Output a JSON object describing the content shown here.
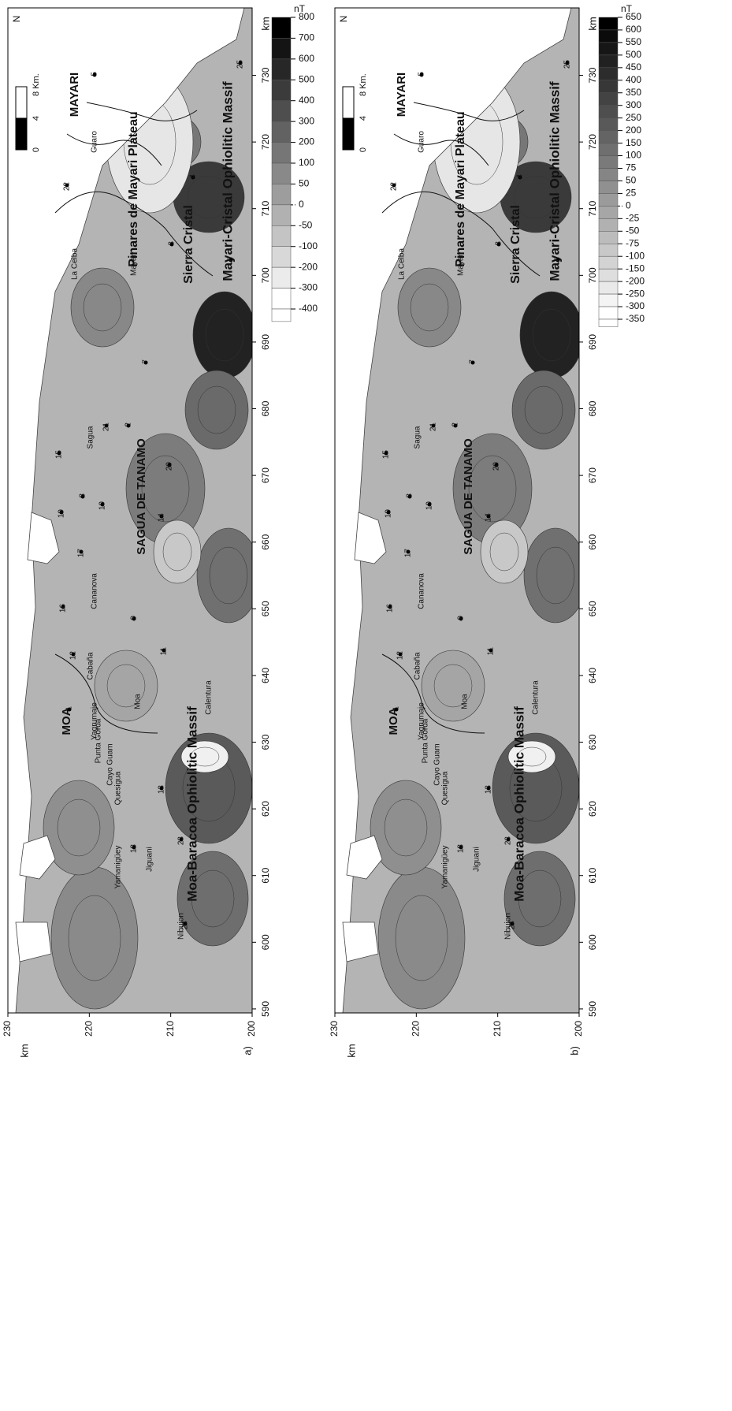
{
  "map": {
    "north": "N",
    "scale_bar": [
      "0",
      "4",
      "8 Km."
    ],
    "places": [
      "MOA",
      "Moa-Baracoa Ophiolitic Massif",
      "SAGUA DE TANAMO",
      "Sierra Cristal",
      "MAYARI",
      "Pinares de Mayari Plateau",
      "Mayari-Cristal Ophiolitic Massif"
    ],
    "rivers": [
      "Nibujon",
      "Jiguani",
      "Yamanigüey",
      "Quesigua",
      "Cayo Guam",
      "Punta Gorda",
      "Yagrumaje",
      "Moa",
      "Cabaña",
      "Calentura",
      "Cananova",
      "Sagua",
      "La Ceiba",
      "Mayari",
      "Guaro"
    ],
    "sites": [
      "1",
      "2",
      "3",
      "4",
      "5",
      "6",
      "7",
      "8",
      "9",
      "10",
      "11",
      "12",
      "13",
      "14",
      "15",
      "16",
      "17",
      "18",
      "19",
      "20",
      "21",
      "22",
      "23",
      "24",
      "25"
    ]
  },
  "panels": [
    {
      "label": "a)",
      "x_axis": {
        "title": "km",
        "ticks": [
          590,
          600,
          610,
          620,
          630,
          640,
          650,
          660,
          670,
          680,
          690,
          700,
          710,
          720,
          730
        ]
      },
      "y_axis": {
        "title": "km",
        "ticks": [
          200,
          210,
          220,
          230
        ]
      },
      "colorbar": {
        "unit": "nT",
        "ticks": [
          800,
          700,
          600,
          500,
          400,
          300,
          200,
          100,
          50,
          0,
          -50,
          -100,
          -200,
          -300,
          -400
        ]
      }
    },
    {
      "label": "b)",
      "x_axis": {
        "title": "km",
        "ticks": [
          590,
          600,
          610,
          620,
          630,
          640,
          650,
          660,
          670,
          680,
          690,
          700,
          710,
          720,
          730
        ]
      },
      "y_axis": {
        "title": "km",
        "ticks": [
          200,
          210,
          220,
          230
        ]
      },
      "colorbar": {
        "unit": "nT",
        "ticks": [
          650,
          600,
          550,
          500,
          450,
          400,
          350,
          300,
          250,
          200,
          150,
          100,
          75,
          50,
          25,
          0,
          -25,
          -50,
          -75,
          -100,
          -150,
          -200,
          -250,
          -300,
          -350
        ]
      }
    }
  ]
}
